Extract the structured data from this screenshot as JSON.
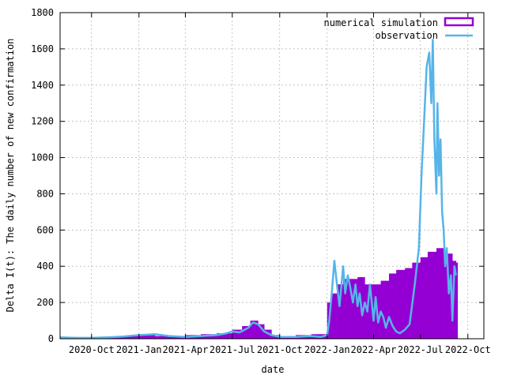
{
  "chart_data": {
    "type": "bar",
    "xlabel": "date",
    "ylabel": "Delta I(t): The daily number of new confirmation",
    "ylim": [
      0,
      1800
    ],
    "xlim": [
      "2020-08-01",
      "2022-11-01"
    ],
    "y_ticks": [
      0,
      200,
      400,
      600,
      800,
      1000,
      1200,
      1400,
      1600,
      1800
    ],
    "x_ticks": [
      {
        "date": "2020-10-01",
        "label": "2020-Oct"
      },
      {
        "date": "2021-01-01",
        "label": "2021-Jan"
      },
      {
        "date": "2021-04-01",
        "label": "2021-Apr"
      },
      {
        "date": "2021-07-01",
        "label": "2021-Jul"
      },
      {
        "date": "2021-10-01",
        "label": "2021-Oct"
      },
      {
        "date": "2022-01-01",
        "label": "2022-Jan"
      },
      {
        "date": "2022-04-01",
        "label": "2022-Apr"
      },
      {
        "date": "2022-07-01",
        "label": "2022-Jul"
      },
      {
        "date": "2022-10-01",
        "label": "2022-Oct"
      }
    ],
    "grid": true,
    "legend_position": "top-right",
    "series": [
      {
        "name": "numerical simulation",
        "style": "bars",
        "color": "#9400d3",
        "x": [
          "2020-08-01",
          "2020-09-01",
          "2020-10-01",
          "2020-11-01",
          "2020-12-01",
          "2021-01-01",
          "2021-02-01",
          "2021-03-01",
          "2021-04-01",
          "2021-05-01",
          "2021-06-01",
          "2021-07-01",
          "2021-07-20",
          "2021-08-05",
          "2021-08-20",
          "2021-09-01",
          "2021-09-15",
          "2021-10-01",
          "2021-11-01",
          "2021-12-01",
          "2021-12-20",
          "2022-01-01",
          "2022-01-10",
          "2022-01-20",
          "2022-02-01",
          "2022-02-15",
          "2022-03-01",
          "2022-03-15",
          "2022-04-01",
          "2022-04-15",
          "2022-05-01",
          "2022-05-15",
          "2022-06-01",
          "2022-06-15",
          "2022-07-01",
          "2022-07-15",
          "2022-08-01",
          "2022-08-15",
          "2022-09-01",
          "2022-09-08"
        ],
        "y": [
          8,
          8,
          10,
          12,
          15,
          20,
          15,
          15,
          20,
          25,
          30,
          50,
          70,
          100,
          80,
          50,
          20,
          10,
          20,
          25,
          25,
          200,
          250,
          300,
          330,
          330,
          340,
          300,
          300,
          320,
          360,
          380,
          390,
          420,
          450,
          480,
          500,
          470,
          430,
          420
        ]
      },
      {
        "name": "observation",
        "style": "line",
        "color": "#56b4e9",
        "x": [
          "2020-08-01",
          "2020-09-01",
          "2020-10-01",
          "2020-11-01",
          "2020-12-01",
          "2021-01-01",
          "2021-02-01",
          "2021-03-01",
          "2021-04-01",
          "2021-05-01",
          "2021-06-01",
          "2021-06-20",
          "2021-07-01",
          "2021-07-15",
          "2021-08-01",
          "2021-08-10",
          "2021-08-20",
          "2021-09-01",
          "2021-09-15",
          "2021-10-01",
          "2021-11-01",
          "2021-12-01",
          "2021-12-20",
          "2022-01-01",
          "2022-01-05",
          "2022-01-10",
          "2022-01-15",
          "2022-01-20",
          "2022-01-25",
          "2022-02-01",
          "2022-02-05",
          "2022-02-10",
          "2022-02-15",
          "2022-02-20",
          "2022-02-25",
          "2022-03-01",
          "2022-03-05",
          "2022-03-10",
          "2022-03-15",
          "2022-03-20",
          "2022-03-25",
          "2022-04-01",
          "2022-04-05",
          "2022-04-10",
          "2022-04-15",
          "2022-04-20",
          "2022-04-25",
          "2022-05-01",
          "2022-05-08",
          "2022-05-15",
          "2022-05-22",
          "2022-06-01",
          "2022-06-10",
          "2022-06-20",
          "2022-06-28",
          "2022-07-03",
          "2022-07-08",
          "2022-07-13",
          "2022-07-18",
          "2022-07-22",
          "2022-07-25",
          "2022-07-28",
          "2022-08-01",
          "2022-08-03",
          "2022-08-06",
          "2022-08-09",
          "2022-08-12",
          "2022-08-15",
          "2022-08-18",
          "2022-08-21",
          "2022-08-25",
          "2022-08-29",
          "2022-09-01",
          "2022-09-05",
          "2022-09-08"
        ],
        "y": [
          8,
          5,
          5,
          8,
          12,
          20,
          25,
          15,
          10,
          15,
          20,
          30,
          40,
          35,
          60,
          90,
          80,
          40,
          20,
          10,
          10,
          15,
          10,
          20,
          100,
          250,
          430,
          300,
          180,
          400,
          250,
          350,
          280,
          200,
          300,
          180,
          250,
          130,
          200,
          150,
          300,
          100,
          230,
          90,
          150,
          120,
          60,
          120,
          70,
          40,
          30,
          50,
          80,
          300,
          500,
          900,
          1200,
          1500,
          1580,
          1300,
          1650,
          1100,
          800,
          1300,
          900,
          1100,
          700,
          600,
          400,
          500,
          250,
          350,
          100,
          400,
          350
        ]
      }
    ]
  }
}
